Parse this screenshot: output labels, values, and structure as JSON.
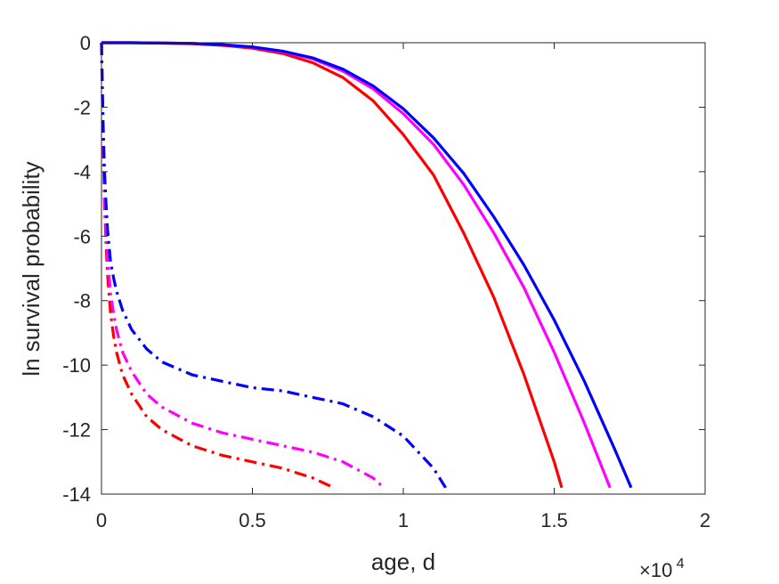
{
  "chart_data": {
    "type": "line",
    "title": "",
    "xlabel": "age, d",
    "ylabel": "ln survival probability",
    "x_exponent": {
      "base": "×10",
      "power": "4"
    },
    "xlim": [
      0,
      20000
    ],
    "ylim": [
      -14,
      0
    ],
    "x_ticks": [
      0,
      5000,
      10000,
      15000,
      20000
    ],
    "x_tick_labels": [
      "0",
      "0.5",
      "1",
      "1.5",
      "2"
    ],
    "y_ticks": [
      0,
      -2,
      -4,
      -6,
      -8,
      -10,
      -12,
      -14
    ],
    "y_tick_labels": [
      "0",
      "-2",
      "-4",
      "-6",
      "-8",
      "-10",
      "-12",
      "-14"
    ],
    "grid": false,
    "box": true,
    "series": [
      {
        "color": "#ff0000",
        "style": "solid",
        "x": [
          0,
          1000,
          2000,
          3000,
          4000,
          5000,
          6000,
          7000,
          8000,
          9000,
          10000,
          11000,
          12000,
          13000,
          14000,
          15000,
          15250
        ],
        "y": [
          0,
          0,
          -0.01,
          -0.03,
          -0.08,
          -0.17,
          -0.33,
          -0.62,
          -1.08,
          -1.8,
          -2.85,
          -4.1,
          -5.9,
          -7.9,
          -10.3,
          -13.0,
          -13.8
        ]
      },
      {
        "color": "#ff00ff",
        "style": "solid",
        "x": [
          0,
          1000,
          2000,
          3000,
          4000,
          5000,
          6000,
          7000,
          8000,
          9000,
          10000,
          11000,
          12000,
          13000,
          14000,
          15000,
          16000,
          16850
        ],
        "y": [
          0,
          0,
          -0.01,
          -0.02,
          -0.06,
          -0.14,
          -0.28,
          -0.5,
          -0.88,
          -1.43,
          -2.2,
          -3.15,
          -4.4,
          -5.9,
          -7.6,
          -9.6,
          -11.8,
          -13.8
        ]
      },
      {
        "color": "#0000ff",
        "style": "solid",
        "x": [
          0,
          1000,
          2000,
          3000,
          4000,
          5000,
          6000,
          7000,
          8000,
          9000,
          10000,
          11000,
          12000,
          13000,
          14000,
          15000,
          16000,
          17000,
          17550
        ],
        "y": [
          0,
          0,
          -0.01,
          -0.02,
          -0.06,
          -0.13,
          -0.26,
          -0.47,
          -0.82,
          -1.34,
          -2.05,
          -2.95,
          -4.05,
          -5.4,
          -6.9,
          -8.6,
          -10.5,
          -12.6,
          -13.8
        ]
      },
      {
        "color": "#ff0000",
        "style": "dashdot",
        "x": [
          0,
          50,
          100,
          150,
          200,
          300,
          400,
          500,
          700,
          1000,
          1500,
          2000,
          3000,
          4000,
          5000,
          6000,
          7000,
          7700
        ],
        "y": [
          0,
          -3.0,
          -5.0,
          -6.2,
          -7.2,
          -8.4,
          -9.1,
          -9.6,
          -10.3,
          -10.9,
          -11.6,
          -12.0,
          -12.5,
          -12.8,
          -13.0,
          -13.2,
          -13.5,
          -13.8
        ]
      },
      {
        "color": "#ff00ff",
        "style": "dashdot",
        "x": [
          0,
          50,
          100,
          150,
          200,
          300,
          400,
          500,
          700,
          1000,
          1500,
          2000,
          3000,
          4000,
          5000,
          6000,
          7000,
          8000,
          9000,
          9350
        ],
        "y": [
          0,
          -2.8,
          -4.7,
          -5.8,
          -6.7,
          -7.8,
          -8.4,
          -8.9,
          -9.6,
          -10.2,
          -10.9,
          -11.3,
          -11.8,
          -12.1,
          -12.3,
          -12.5,
          -12.7,
          -13.0,
          -13.5,
          -13.8
        ]
      },
      {
        "color": "#0000ff",
        "style": "dashdot",
        "x": [
          0,
          50,
          100,
          150,
          200,
          300,
          400,
          500,
          700,
          1000,
          1500,
          2000,
          3000,
          4000,
          5000,
          6000,
          7000,
          8000,
          9000,
          10000,
          11000,
          11400
        ],
        "y": [
          0,
          -2.4,
          -4.0,
          -5.0,
          -5.8,
          -6.8,
          -7.3,
          -7.7,
          -8.3,
          -8.9,
          -9.5,
          -9.9,
          -10.3,
          -10.5,
          -10.7,
          -10.8,
          -11.0,
          -11.2,
          -11.6,
          -12.2,
          -13.2,
          -13.8
        ]
      }
    ]
  }
}
